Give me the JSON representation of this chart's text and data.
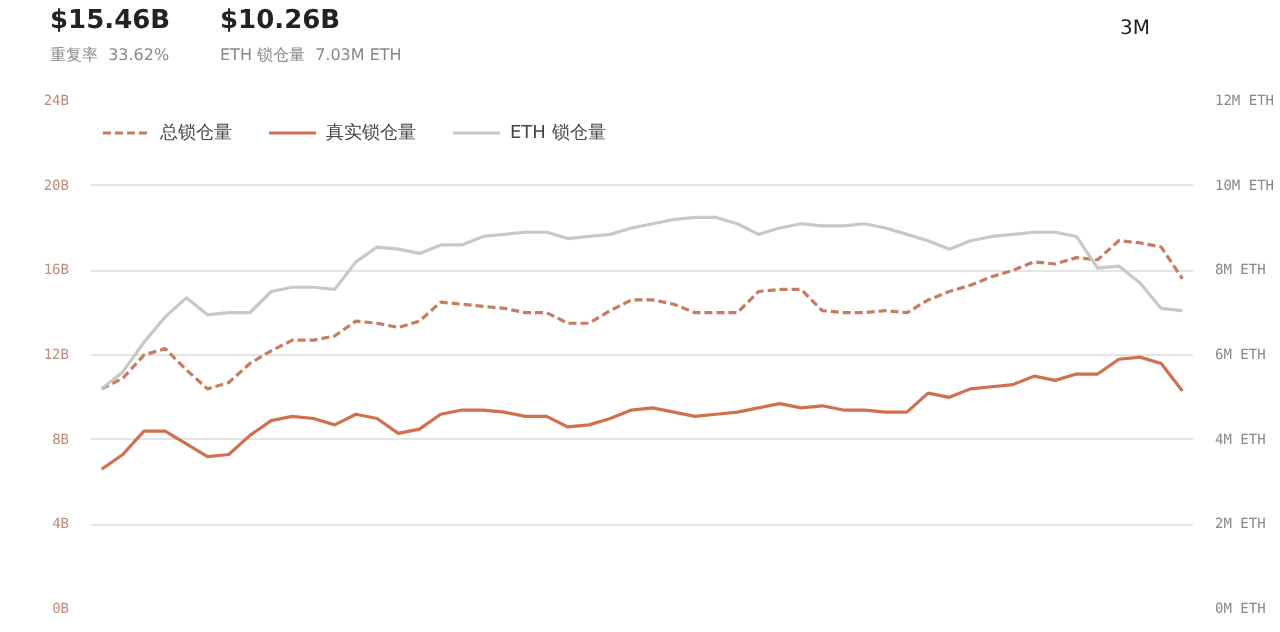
{
  "chart_data": {
    "type": "line",
    "categories": [
      null,
      null,
      null,
      null,
      null,
      null,
      null,
      null,
      null,
      null,
      null,
      null,
      null,
      null,
      null,
      null,
      null,
      null,
      null,
      null,
      null,
      null,
      null,
      null,
      null,
      null,
      null,
      null,
      null,
      null,
      null,
      null,
      null,
      null,
      null,
      null,
      null,
      null,
      null,
      null,
      null,
      null,
      null,
      null,
      null,
      null,
      null,
      null,
      null,
      null,
      null,
      null
    ],
    "annotations": [
      "$15.46B",
      "重复率  33.62%",
      "$10.26B",
      "ETH 锁仓量  7.03M ETH",
      "3M"
    ],
    "series": [
      {
        "name": "总锁仓量",
        "color": "#c97b5f",
        "line_style": "dashed",
        "values": [
          10.4,
          10.9,
          12.0,
          12.3,
          11.3,
          10.4,
          10.7,
          11.6,
          12.2,
          12.7,
          12.7,
          12.9,
          13.6,
          13.5,
          13.3,
          13.6,
          14.5,
          14.4,
          14.3,
          14.2,
          14.0,
          14.0,
          13.5,
          13.5,
          14.1,
          14.6,
          14.6,
          14.4,
          14.0,
          14.0,
          14.0,
          15.0,
          15.1,
          15.1,
          14.1,
          14.0,
          14.0,
          14.1,
          14.0,
          14.6,
          15.0,
          15.3,
          15.7,
          16.0,
          16.4,
          16.3,
          16.6,
          16.5,
          17.4,
          17.3,
          17.1,
          15.6
        ]
      },
      {
        "name": "真实锁仓量",
        "color": "#d0704f",
        "line_style": "solid",
        "values": [
          6.6,
          7.3,
          8.4,
          8.4,
          7.8,
          7.2,
          7.3,
          8.2,
          8.9,
          9.1,
          9.0,
          8.7,
          9.2,
          9.0,
          8.3,
          8.5,
          9.2,
          9.4,
          9.4,
          9.3,
          9.1,
          9.1,
          8.6,
          8.7,
          9.0,
          9.4,
          9.5,
          9.3,
          9.1,
          9.2,
          9.3,
          9.5,
          9.7,
          9.5,
          9.6,
          9.4,
          9.4,
          9.3,
          9.3,
          10.2,
          10.0,
          10.4,
          10.5,
          10.6,
          11.0,
          10.8,
          11.1,
          11.1,
          11.8,
          11.9,
          11.6,
          10.3
        ]
      },
      {
        "name": "ETH 锁仓量",
        "color": "#c8c8c8",
        "line_style": "solid",
        "axis": "y2",
        "values": [
          5.2,
          5.6,
          6.3,
          6.9,
          7.35,
          6.95,
          7.0,
          7.0,
          7.5,
          7.6,
          7.6,
          7.55,
          8.2,
          8.55,
          8.5,
          8.4,
          8.6,
          8.6,
          8.8,
          8.85,
          8.9,
          8.9,
          8.75,
          8.8,
          8.85,
          9.0,
          9.1,
          9.2,
          9.25,
          9.25,
          9.1,
          8.85,
          9.0,
          9.1,
          9.05,
          9.05,
          9.1,
          9.0,
          8.85,
          8.7,
          8.5,
          8.7,
          8.8,
          8.85,
          8.9,
          8.9,
          8.8,
          8.05,
          8.1,
          7.7,
          7.1,
          7.05
        ]
      }
    ],
    "ylim": [
      0,
      24
    ],
    "yticks": [
      {
        "value": 0,
        "label": "0B"
      },
      {
        "value": 4,
        "label": "4B"
      },
      {
        "value": 8,
        "label": "8B"
      },
      {
        "value": 12,
        "label": "12B"
      },
      {
        "value": 16,
        "label": "16B"
      },
      {
        "value": 20,
        "label": "20B"
      },
      {
        "value": 24,
        "label": "24B"
      }
    ],
    "y2lim": [
      0,
      12
    ],
    "y2ticks": [
      {
        "value": 0,
        "label": "0M ETH"
      },
      {
        "value": 2,
        "label": "2M ETH"
      },
      {
        "value": 4,
        "label": "4M ETH"
      },
      {
        "value": 6,
        "label": "6M ETH"
      },
      {
        "value": 8,
        "label": "8M ETH"
      },
      {
        "value": 10,
        "label": "10M ETH"
      },
      {
        "value": 12,
        "label": "12M ETH"
      }
    ],
    "grid": "y",
    "legend": "top left",
    "marker": "none"
  }
}
